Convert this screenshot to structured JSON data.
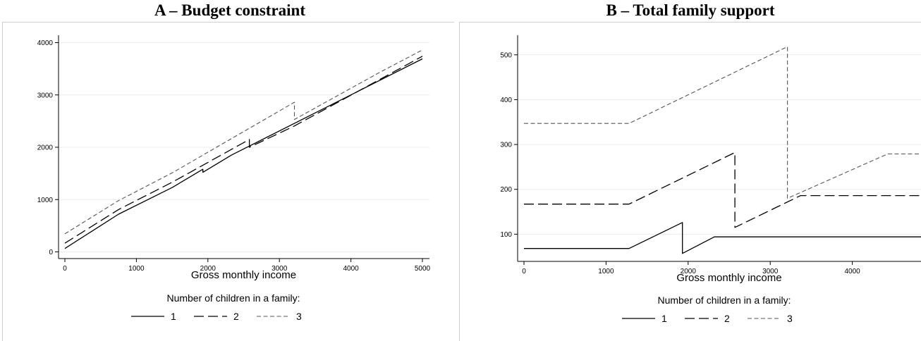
{
  "chart_data": [
    {
      "type": "line",
      "title": "A – Budget constraint",
      "xlabel": "Gross monthly income",
      "ylabel": "",
      "xlim": [
        0,
        5000
      ],
      "ylim": [
        0,
        4000
      ],
      "xticks": [
        0,
        1000,
        2000,
        3000,
        4000,
        5000
      ],
      "yticks": [
        0,
        1000,
        2000,
        3000,
        4000
      ],
      "grid": true,
      "legend": {
        "title": "Number of children in a family:",
        "placement": "bottom",
        "entries": [
          "1",
          "2",
          "3"
        ]
      },
      "series": [
        {
          "name": "1",
          "style": "solid",
          "color": "#000000",
          "x": [
            0,
            750,
            1500,
            1930,
            1930,
            2330,
            5000
          ],
          "y": [
            65,
            720,
            1230,
            1580,
            1520,
            1850,
            3690
          ]
        },
        {
          "name": "2",
          "style": "longdash",
          "color": "#000000",
          "x": [
            0,
            750,
            1500,
            2580,
            2580,
            3200,
            5000
          ],
          "y": [
            165,
            810,
            1330,
            2150,
            2000,
            2400,
            3740
          ]
        },
        {
          "name": "3",
          "style": "dash",
          "color": "#555555",
          "x": [
            0,
            750,
            1500,
            3210,
            3210,
            4400,
            5000
          ],
          "y": [
            345,
            980,
            1510,
            2860,
            2530,
            3430,
            3860
          ]
        }
      ]
    },
    {
      "type": "line",
      "title": "B – Total family support",
      "xlabel": "Gross monthly income",
      "ylabel": "",
      "xlim": [
        0,
        5000
      ],
      "ylim": [
        50,
        530
      ],
      "xticks": [
        0,
        1000,
        2000,
        3000,
        4000,
        5000
      ],
      "yticks": [
        100,
        200,
        300,
        400,
        500
      ],
      "grid": true,
      "legend": {
        "title": "Number of children in a family:",
        "placement": "bottom",
        "entries": [
          "1",
          "2",
          "3"
        ]
      },
      "series": [
        {
          "name": "1",
          "style": "solid",
          "color": "#000000",
          "x": [
            0,
            1280,
            1930,
            1930,
            2320,
            5000
          ],
          "y": [
            68,
            68,
            126,
            57,
            94,
            94
          ]
        },
        {
          "name": "2",
          "style": "longdash",
          "color": "#000000",
          "x": [
            0,
            1280,
            2570,
            2570,
            3370,
            5000
          ],
          "y": [
            167,
            167,
            282,
            115,
            186,
            186
          ]
        },
        {
          "name": "3",
          "style": "dash",
          "color": "#555555",
          "x": [
            0,
            1280,
            3210,
            3210,
            4430,
            5000
          ],
          "y": [
            347,
            347,
            518,
            180,
            279,
            279
          ]
        }
      ]
    }
  ]
}
